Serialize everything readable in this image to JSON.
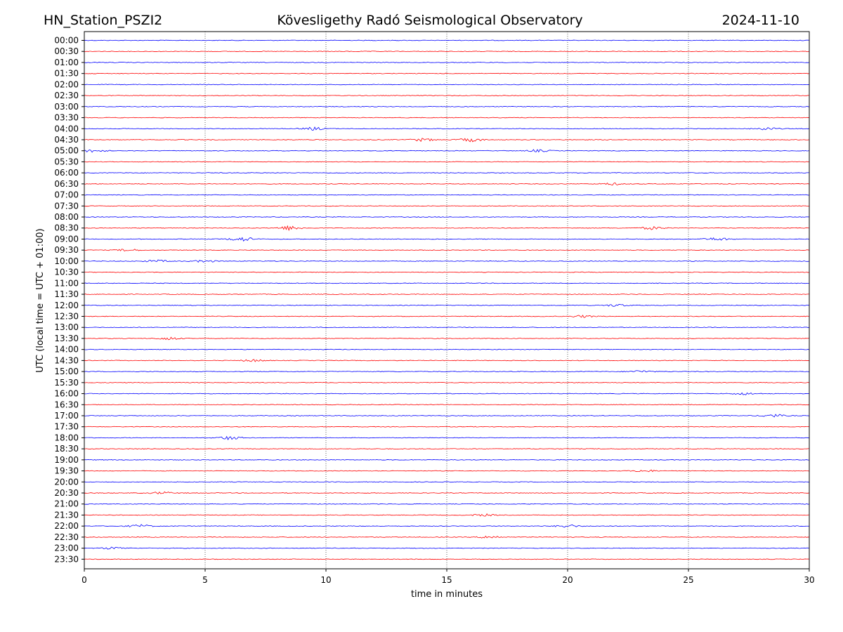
{
  "header": {
    "station": "HN_Station_PSZI2",
    "observatory": "Kövesligethy Radó Seismological Observatory",
    "date": "2024-11-10"
  },
  "chart_data": {
    "type": "line",
    "title": "Kövesligethy Radó Seismological Observatory",
    "xlabel": "time in minutes",
    "ylabel": "UTC (local time = UTC + 01:00)",
    "xlim": [
      0,
      30
    ],
    "x_ticks": [
      0,
      5,
      10,
      15,
      20,
      25,
      30
    ],
    "x_grid": "dotted vertical lines at each x tick",
    "row_labels": [
      "00:00",
      "00:30",
      "01:00",
      "01:30",
      "02:00",
      "02:30",
      "03:00",
      "03:30",
      "04:00",
      "04:30",
      "05:00",
      "05:30",
      "06:00",
      "06:30",
      "07:00",
      "07:30",
      "08:00",
      "08:30",
      "09:00",
      "09:30",
      "10:00",
      "10:30",
      "11:00",
      "11:30",
      "12:00",
      "12:30",
      "13:00",
      "13:30",
      "14:00",
      "14:30",
      "15:00",
      "15:30",
      "16:00",
      "16:30",
      "17:00",
      "17:30",
      "18:00",
      "18:30",
      "19:00",
      "19:30",
      "20:00",
      "20:30",
      "21:00",
      "21:30",
      "22:00",
      "22:30",
      "23:00",
      "23:30"
    ],
    "trace_colors": [
      "#0000ff",
      "#ff0000"
    ],
    "bursts": [
      {
        "row": 8,
        "minute": 9.5,
        "amp": 2.0
      },
      {
        "row": 8,
        "minute": 28.2,
        "amp": 2.0
      },
      {
        "row": 9,
        "minute": 14.0,
        "amp": 2.0
      },
      {
        "row": 9,
        "minute": 16.0,
        "amp": 2.5
      },
      {
        "row": 10,
        "minute": 0.4,
        "amp": 2.0
      },
      {
        "row": 10,
        "minute": 18.8,
        "amp": 1.5
      },
      {
        "row": 13,
        "minute": 21.8,
        "amp": 1.5
      },
      {
        "row": 17,
        "minute": 8.5,
        "amp": 3.0
      },
      {
        "row": 17,
        "minute": 23.5,
        "amp": 2.0
      },
      {
        "row": 18,
        "minute": 6.5,
        "amp": 3.0
      },
      {
        "row": 18,
        "minute": 26.2,
        "amp": 2.0
      },
      {
        "row": 19,
        "minute": 1.8,
        "amp": 1.5
      },
      {
        "row": 20,
        "minute": 3.0,
        "amp": 1.5
      },
      {
        "row": 20,
        "minute": 5.0,
        "amp": 1.5
      },
      {
        "row": 24,
        "minute": 22.0,
        "amp": 1.5
      },
      {
        "row": 25,
        "minute": 20.6,
        "amp": 1.5
      },
      {
        "row": 27,
        "minute": 3.5,
        "amp": 2.0
      },
      {
        "row": 29,
        "minute": 7.0,
        "amp": 1.5
      },
      {
        "row": 30,
        "minute": 23.0,
        "amp": 1.5
      },
      {
        "row": 32,
        "minute": 27.3,
        "amp": 1.5
      },
      {
        "row": 34,
        "minute": 28.5,
        "amp": 2.0
      },
      {
        "row": 36,
        "minute": 6.0,
        "amp": 2.5
      },
      {
        "row": 39,
        "minute": 23.2,
        "amp": 1.5
      },
      {
        "row": 41,
        "minute": 3.2,
        "amp": 1.5
      },
      {
        "row": 43,
        "minute": 16.5,
        "amp": 1.5
      },
      {
        "row": 44,
        "minute": 2.3,
        "amp": 2.0
      },
      {
        "row": 44,
        "minute": 20.0,
        "amp": 2.0
      },
      {
        "row": 45,
        "minute": 16.8,
        "amp": 2.0
      },
      {
        "row": 46,
        "minute": 1.2,
        "amp": 1.5
      }
    ]
  }
}
